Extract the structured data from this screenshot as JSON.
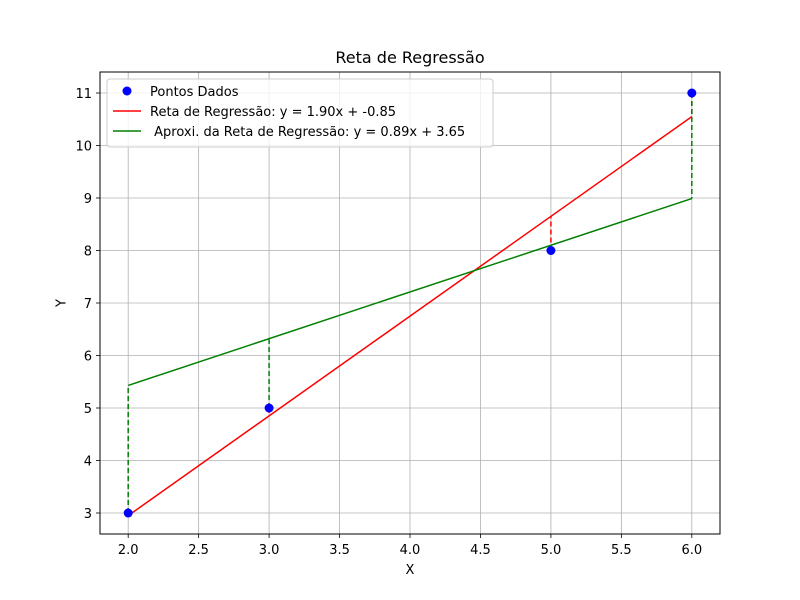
{
  "chart_data": {
    "type": "scatter",
    "title": "Reta de Regressão",
    "xlabel": "X",
    "ylabel": "Y",
    "xlim": [
      1.8,
      6.2
    ],
    "ylim": [
      2.6,
      11.4
    ],
    "xticks": [
      2.0,
      2.5,
      3.0,
      3.5,
      4.0,
      4.5,
      5.0,
      5.5,
      6.0
    ],
    "yticks": [
      3,
      4,
      5,
      6,
      7,
      8,
      9,
      10,
      11
    ],
    "xtick_labels": [
      "2.0",
      "2.5",
      "3.0",
      "3.5",
      "4.0",
      "4.5",
      "5.0",
      "5.5",
      "6.0"
    ],
    "ytick_labels": [
      "3",
      "4",
      "5",
      "6",
      "7",
      "8",
      "9",
      "10",
      "11"
    ],
    "grid": true,
    "legend_position": "top-left",
    "points": {
      "name": "Pontos Dados",
      "color": "#0000ff",
      "x": [
        2,
        3,
        5,
        6
      ],
      "y": [
        3,
        5,
        8,
        11
      ]
    },
    "lines": [
      {
        "name": "Reta de Regressão: y = 1.90x + -0.85",
        "color": "#ff0000",
        "slope": 1.9,
        "intercept": -0.85,
        "x_range": [
          2,
          6
        ]
      },
      {
        "name": " Aproxi. da Reta de Regressão: y = 0.89x + 3.65",
        "color": "#008000",
        "slope": 0.89,
        "intercept": 3.65,
        "x_range": [
          2,
          6
        ]
      }
    ]
  }
}
